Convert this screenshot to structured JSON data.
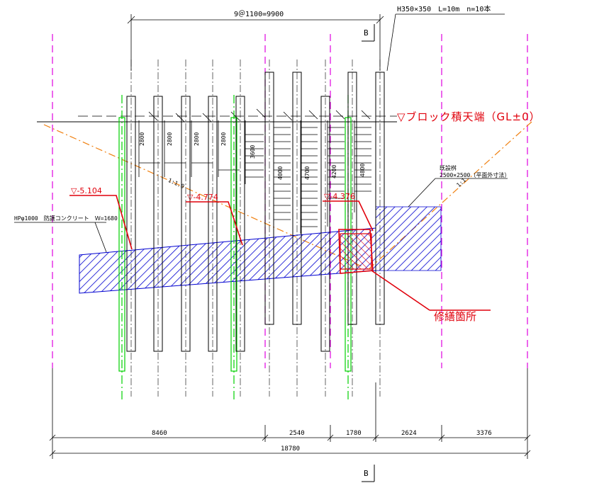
{
  "pile_spec": "H350×350　L=10m　n=10本",
  "pile_spacing": "9＠1100=9900",
  "section_marker_top": "B",
  "section_marker_bottom": "B",
  "block_top_label": "▽ブロック積天端（GL±0）",
  "existing_shaft_label": "既設桝",
  "existing_shaft_size": "2500×2500（平面外寸法）",
  "hp_label": "HPφ1000　防護コンクリート　Ｗ=1680",
  "level_left": "▽-5.104",
  "level_mid": "▽-4.774",
  "level_right": "▽-4.376",
  "repair_label": "修繕箇所",
  "slope_left": "1:1.0",
  "slope_right": "1:1",
  "embed_lengths": [
    "2800",
    "2800",
    "2800",
    "2800",
    "3600",
    "4000",
    "4700",
    "4200",
    "4800"
  ],
  "dims": [
    "8460",
    "2540",
    "1780",
    "2624",
    "3376"
  ],
  "dim_total": "18780",
  "colors": {
    "red": "#e0000b",
    "hatch_blue": "#0000d0",
    "green": "#00d000",
    "magenta": "#e000e0",
    "orange": "#f08010"
  }
}
